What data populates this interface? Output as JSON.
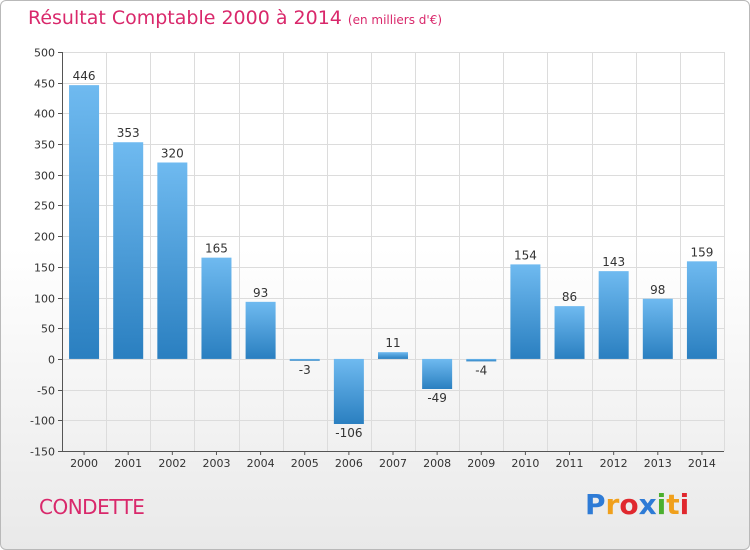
{
  "title": "Résultat Comptable 2000 à 2014",
  "subtitle": "(en milliers d'€)",
  "city": "CONDETTE",
  "logo": {
    "letters": [
      "P",
      "r",
      "o",
      "x",
      "i",
      "t",
      "i"
    ],
    "colors": [
      "#2e7bd6",
      "#f0a01c",
      "#e0282e",
      "#2e7bd6",
      "#4caf2e",
      "#f0a01c",
      "#e0282e"
    ]
  },
  "colors": {
    "accent": "#d9286b",
    "bar_top": "#6fbaf0",
    "bar_bottom": "#2a7fc0"
  },
  "chart_data": {
    "type": "bar",
    "title": "Résultat Comptable 2000 à 2014",
    "categories": [
      "2000",
      "2001",
      "2002",
      "2003",
      "2004",
      "2005",
      "2006",
      "2007",
      "2008",
      "2009",
      "2010",
      "2011",
      "2012",
      "2013",
      "2014"
    ],
    "values": [
      446,
      353,
      320,
      165,
      93,
      -3,
      -106,
      11,
      -49,
      -4,
      154,
      86,
      143,
      98,
      159
    ],
    "yticks": [
      500,
      450,
      400,
      350,
      300,
      250,
      200,
      150,
      100,
      50,
      0,
      -50,
      -100,
      -150
    ],
    "ylim": [
      -150,
      500
    ],
    "grid": true
  }
}
